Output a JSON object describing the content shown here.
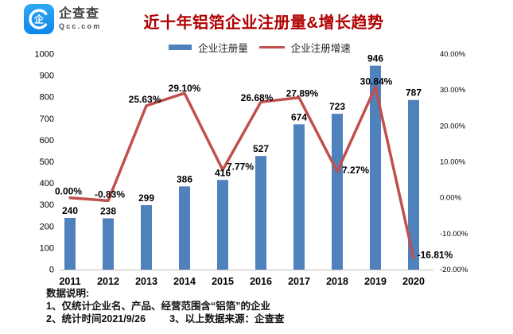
{
  "logo": {
    "brand": "企查查",
    "domain": "Qcc.com"
  },
  "title": "近十年铝箔企业注册量&增长趋势",
  "legend": {
    "bar_label": "企业注册量",
    "line_label": "企业注册增速"
  },
  "colors": {
    "bar": "#4F81BD",
    "line": "#C0504D",
    "title": "#B00000",
    "logo_blue": "#1E97F3",
    "axis_line": "#BFBFBF"
  },
  "chart_data": {
    "type": "bar",
    "subtype": "bar+line combo, dual axis",
    "title": "近十年铝箔企业注册量&增长趋势",
    "categories": [
      "2011",
      "2012",
      "2013",
      "2014",
      "2015",
      "2016",
      "2017",
      "2018",
      "2019",
      "2020"
    ],
    "series": [
      {
        "name": "企业注册量",
        "type": "bar",
        "axis": "left",
        "values": [
          240,
          238,
          299,
          386,
          416,
          527,
          674,
          723,
          946,
          787
        ],
        "labels": [
          "240",
          "238",
          "299",
          "386",
          "416",
          "527",
          "674",
          "723",
          "946",
          "787"
        ]
      },
      {
        "name": "企业注册增速",
        "type": "line",
        "axis": "right",
        "values": [
          0.0,
          -0.83,
          25.63,
          29.1,
          7.77,
          26.68,
          27.89,
          7.27,
          30.84,
          -16.81
        ],
        "labels": [
          "0.00%",
          "-0.83%",
          "25.63%",
          "29.10%",
          "7.77%",
          "26.68%",
          "27.89%",
          "7.27%",
          "30.84%",
          "-16.81%"
        ]
      }
    ],
    "left_axis": {
      "min": 0,
      "max": 1000,
      "step": 100,
      "ticks": [
        "1000",
        "900",
        "800",
        "700",
        "600",
        "500",
        "400",
        "300",
        "200",
        "100",
        "0"
      ]
    },
    "right_axis": {
      "min": -20,
      "max": 40,
      "step": 10,
      "ticks": [
        "40.00%",
        "30.00%",
        "20.00%",
        "10.00%",
        "0.00%",
        "-10.00%",
        "-20.00%"
      ]
    },
    "grid": false,
    "legend_position": "top"
  },
  "footer": {
    "heading": "数据说明:",
    "line1": "1、仅统计企业名、产品、经营范围含“铝箔”的企业",
    "line2": "2、统计时间2021/9/26",
    "line3": "3、以上数据来源：企查查"
  }
}
